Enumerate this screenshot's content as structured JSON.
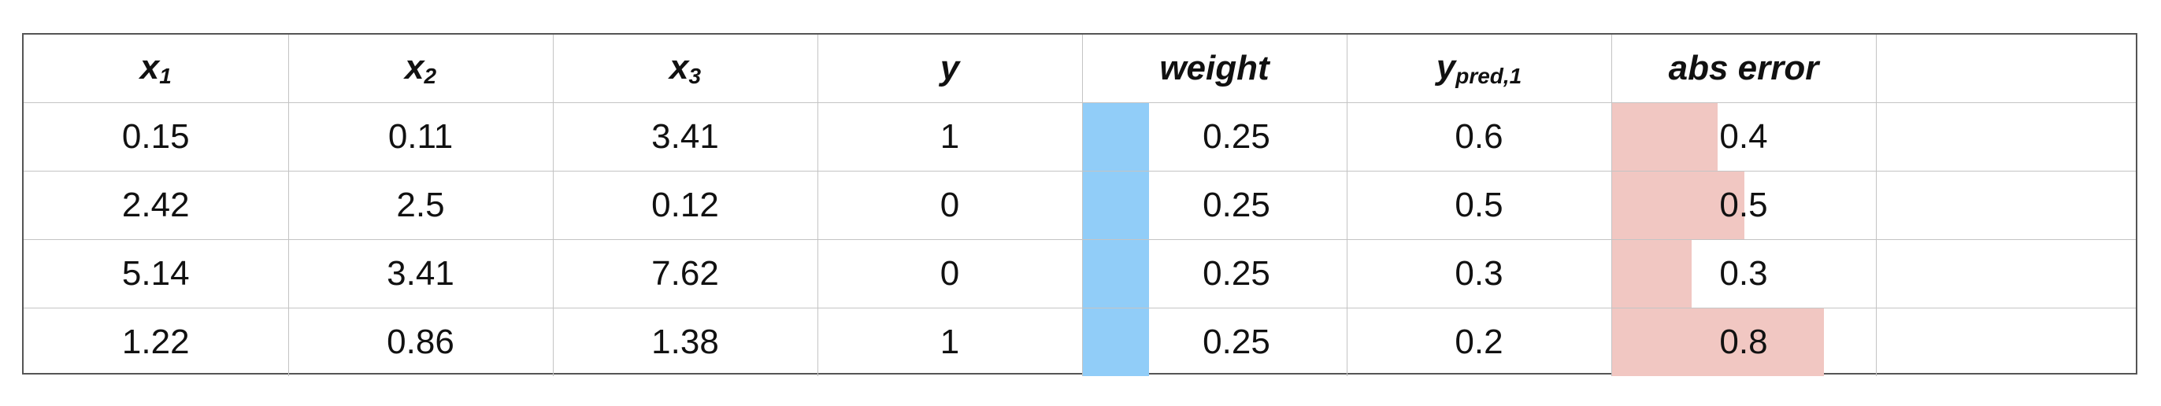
{
  "table": {
    "headers": {
      "x1": {
        "base": "x",
        "sub": "1"
      },
      "x2": {
        "base": "x",
        "sub": "2"
      },
      "x3": {
        "base": "x",
        "sub": "3"
      },
      "y": {
        "base": "y"
      },
      "weight": {
        "base": "weight"
      },
      "ypred": {
        "base": "y",
        "sub": "pred,1"
      },
      "abs_error": {
        "base": "abs error"
      },
      "extra": {
        "base": ""
      }
    },
    "rows": [
      {
        "x1": "0.15",
        "x2": "0.11",
        "x3": "3.41",
        "y": "1",
        "weight": "0.25",
        "ypred": "0.6",
        "abs_error": "0.4"
      },
      {
        "x1": "2.42",
        "x2": "2.5",
        "x3": "0.12",
        "y": "0",
        "weight": "0.25",
        "ypred": "0.5",
        "abs_error": "0.5"
      },
      {
        "x1": "5.14",
        "x2": "3.41",
        "x3": "7.62",
        "y": "0",
        "weight": "0.25",
        "ypred": "0.3",
        "abs_error": "0.3"
      },
      {
        "x1": "1.22",
        "x2": "0.86",
        "x3": "1.38",
        "y": "1",
        "weight": "0.25",
        "ypred": "0.2",
        "abs_error": "0.8"
      }
    ]
  },
  "colors": {
    "weight_bar": "#91cdf8",
    "error_bar": "#f1c7c2",
    "grid": "#c4c4c4",
    "border": "#555555"
  }
}
